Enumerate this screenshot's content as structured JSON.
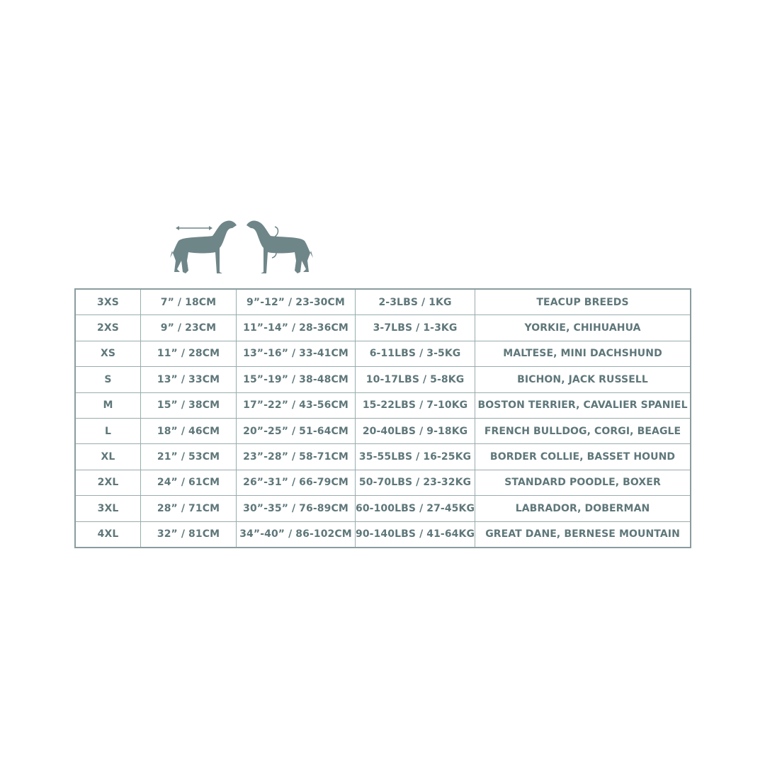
{
  "icons": {
    "dog_length": "dog-back-length-icon",
    "dog_girth": "dog-neck-chest-girth-icon",
    "color": "#6f8689"
  },
  "rows": [
    [
      "3XS",
      "7” / 18CM",
      "9”-12” / 23-30CM",
      "2-3LBS / 1KG",
      "TEACUP BREEDS"
    ],
    [
      "2XS",
      "9” / 23CM",
      "11”-14” / 28-36CM",
      "3-7LBS / 1-3KG",
      "YORKIE, CHIHUAHUA"
    ],
    [
      "XS",
      "11” / 28CM",
      "13”-16” / 33-41CM",
      "6-11LBS / 3-5KG",
      "MALTESE, MINI DACHSHUND"
    ],
    [
      "S",
      "13” / 33CM",
      "15”-19” / 38-48CM",
      "10-17LBS / 5-8KG",
      "BICHON, JACK RUSSELL"
    ],
    [
      "M",
      "15” / 38CM",
      "17”-22” / 43-56CM",
      "15-22LBS / 7-10KG",
      "BOSTON TERRIER, CAVALIER SPANIEL"
    ],
    [
      "L",
      "18” / 46CM",
      "20”-25” / 51-64CM",
      "20-40LBS / 9-18KG",
      "FRENCH BULLDOG, CORGI, BEAGLE"
    ],
    [
      "XL",
      "21” / 53CM",
      "23”-28” / 58-71CM",
      "35-55LBS / 16-25KG",
      "BORDER COLLIE, BASSET HOUND"
    ],
    [
      "2XL",
      "24” / 61CM",
      "26”-31” / 66-79CM",
      "50-70LBS / 23-32KG",
      "STANDARD POODLE, BOXER"
    ],
    [
      "3XL",
      "28” / 71CM",
      "30”-35” / 76-89CM",
      "60-100LBS / 27-45KG",
      "LABRADOR, DOBERMAN"
    ],
    [
      "4XL",
      "32” / 81CM",
      "34”-40” / 86-102CM",
      "90-140LBS / 41-64KG",
      "GREAT DANE, BERNESE MOUNTAIN"
    ]
  ]
}
